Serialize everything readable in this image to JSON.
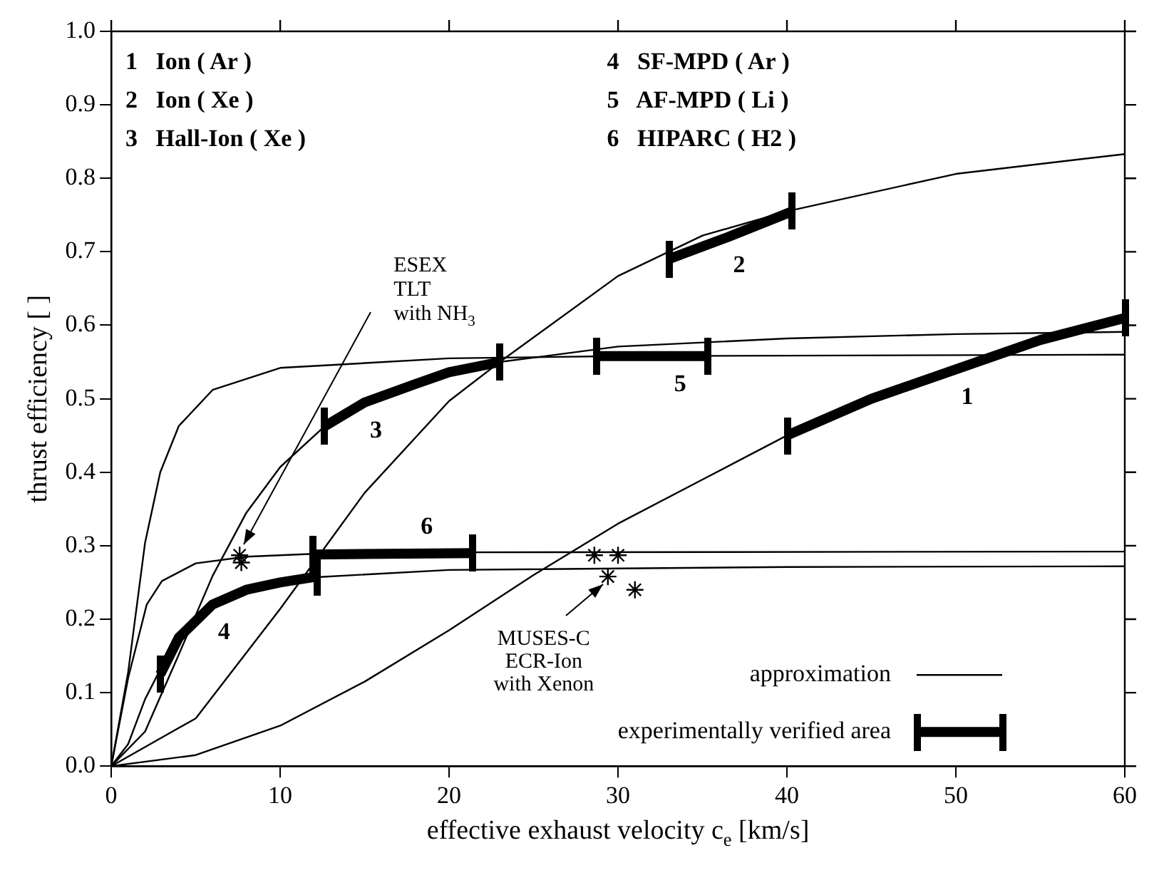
{
  "chart_data": {
    "type": "line",
    "xlabel": "effective exhaust velocity c$_{e}$ [km/s]",
    "ylabel": "thrust efficiency [ ]",
    "xlim": [
      0,
      60
    ],
    "xticks": [
      0,
      10,
      20,
      30,
      40,
      50,
      60
    ],
    "ylim": [
      0,
      1
    ],
    "yticks": [
      {
        "value": 0,
        "label": "0.0"
      },
      0.1,
      0.2,
      0.3,
      0.4,
      0.5,
      0.6,
      0.7,
      0.8,
      0.9,
      {
        "value": 1,
        "label": "1.0"
      }
    ],
    "grid": false,
    "legend": "bottom right",
    "line_style": "solid",
    "marker": "none",
    "series": [
      {
        "name": "approximation",
        "type": "line",
        "color": "#000000",
        "x": [
          0,
          5,
          10,
          15,
          20,
          25,
          30,
          35,
          40,
          45,
          50,
          55,
          60
        ],
        "values": [
          0,
          0.015,
          0.055,
          0.115,
          0.185,
          0.26,
          0.33,
          0.39,
          0.45,
          0.5,
          0.54,
          0.58,
          0.61
        ]
      },
      {
        "type": "line",
        "color": "#000000",
        "x": [
          0,
          5,
          10,
          15,
          20,
          23,
          30,
          35,
          40,
          50,
          60
        ],
        "values": [
          0,
          0.065,
          0.214,
          0.372,
          0.497,
          0.55,
          0.667,
          0.722,
          0.755,
          0.806,
          0.833
        ]
      },
      {
        "type": "line",
        "color": "#000000",
        "x": [
          0,
          2,
          4,
          6,
          8,
          10,
          12.6,
          15,
          20,
          23,
          30,
          40,
          50,
          60
        ],
        "values": [
          0,
          0.047,
          0.152,
          0.259,
          0.345,
          0.407,
          0.462,
          0.495,
          0.536,
          0.55,
          0.571,
          0.582,
          0.588,
          0.591
        ]
      },
      {
        "type": "line",
        "color": "#000000",
        "x": [
          0,
          1,
          2,
          4,
          6,
          8,
          12,
          20,
          40,
          60
        ],
        "values": [
          0,
          0.03,
          0.091,
          0.181,
          0.223,
          0.242,
          0.257,
          0.267,
          0.271,
          0.272
        ]
      },
      {
        "type": "line",
        "color": "#000000",
        "x": [
          0,
          1,
          2,
          2.9,
          4,
          6,
          10,
          20,
          30,
          60
        ],
        "values": [
          0,
          0.128,
          0.304,
          0.4,
          0.463,
          0.512,
          0.542,
          0.555,
          0.558,
          0.56
        ]
      },
      {
        "type": "line",
        "color": "#000000",
        "x": [
          0,
          1,
          2.1,
          3,
          5,
          8,
          12,
          20,
          60
        ],
        "values": [
          0,
          0.12,
          0.22,
          0.252,
          0.276,
          0.285,
          0.289,
          0.291,
          0.292
        ]
      },
      {
        "name": "experimentally verified area",
        "type": "line",
        "color": "#000000",
        "x": [
          40,
          45,
          50,
          55,
          60
        ],
        "values": [
          0.45,
          0.5,
          0.54,
          0.58,
          0.61
        ]
      },
      {
        "type": "line",
        "color": "#000000",
        "x": [
          33,
          36.5,
          40.3
        ],
        "values": [
          0.69,
          0.72,
          0.755
        ]
      },
      {
        "type": "line",
        "color": "#000000",
        "x": [
          12.6,
          15,
          18,
          20,
          23
        ],
        "values": [
          0.462,
          0.495,
          0.52,
          0.536,
          0.55
        ]
      },
      {
        "type": "line",
        "color": "#000000",
        "x": [
          2.9,
          4,
          6,
          8,
          10,
          12.2
        ],
        "values": [
          0.125,
          0.175,
          0.22,
          0.24,
          0.25,
          0.258
        ]
      },
      {
        "type": "line",
        "color": "#000000",
        "x": [
          28.7,
          35.3
        ],
        "values": [
          0.558,
          0.558
        ]
      },
      {
        "type": "line",
        "color": "#000000",
        "x": [
          11.9,
          21.4
        ],
        "values": [
          0.288,
          0.29
        ]
      },
      {
        "type": "scatter",
        "color": "#000000",
        "marker": "cross",
        "x": [
          7.6,
          7.7,
          28.6,
          30,
          29.4,
          31
        ],
        "values": [
          0.287,
          0.277,
          0.287,
          0.287,
          0.258,
          0.24
        ]
      }
    ],
    "annotations": [
      "1   Ion ( Ar )",
      "2   Ion ( Xe )",
      "3   Hall-Ion ( Xe )",
      "4   SF-MPD ( Ar )",
      "5   AF-MPD ( Li )",
      "6   HIPARC ( H2 )",
      {
        "text": "1",
        "x": 50,
        "y": 0.54
      },
      {
        "text": "2",
        "x": 36.5,
        "y": 0.72
      },
      {
        "text": "3",
        "x": 15,
        "y": 0.495
      },
      {
        "text": "4",
        "x": 6,
        "y": 0.22
      },
      {
        "text": "5",
        "x": 33,
        "y": 0.558
      },
      {
        "text": "6",
        "x": 18,
        "y": 0.29
      },
      {
        "text": "ESEX\nTLT\nwith NH$_{3}$",
        "x": 7.6,
        "y": 0.287
      },
      {
        "text": "MUSES-C\nECR-Ion\nwith Xenon",
        "x": 29.4,
        "y": 0.258
      }
    ]
  }
}
